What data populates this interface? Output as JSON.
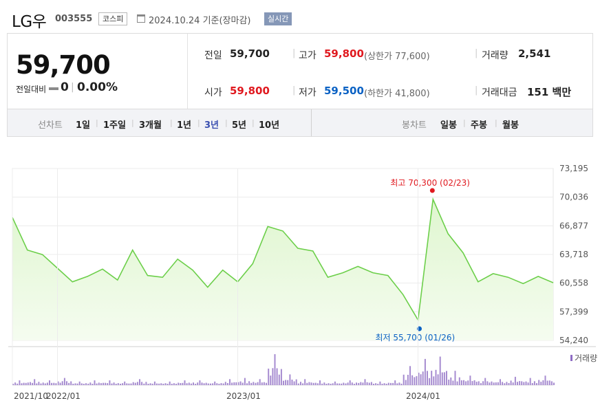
{
  "header": {
    "stock_name": "LG우",
    "stock_code": "003555",
    "market": "코스피",
    "base_date": "2024.10.24 기준(장마감)",
    "realtime_label": "실시간"
  },
  "quote": {
    "current_price": "59,700",
    "change_label": "전일대비",
    "change_value": "0",
    "change_rate": "0.00%",
    "prev_close_label": "전일",
    "prev_close": "59,700",
    "open_label": "시가",
    "open": "59,800",
    "high_label": "고가",
    "high": "59,800",
    "upper_limit": "(상한가 77,600)",
    "low_label": "저가",
    "low": "59,500",
    "lower_limit": "(하한가 41,800)",
    "volume_label": "거래량",
    "volume": "2,541",
    "amount_label": "거래대금",
    "amount": "151 백만"
  },
  "period_bar": {
    "line_chart_label": "선차트",
    "periods": [
      "1일",
      "1주일",
      "3개월",
      "1년",
      "3년",
      "5년",
      "10년"
    ],
    "active_period": "3년",
    "candle_chart_label": "봉차트",
    "candle_periods": [
      "일봉",
      "주봉",
      "월봉"
    ]
  },
  "colors": {
    "up": "#e0191f",
    "down": "#0b62c4",
    "line": "#6ccf4a",
    "fill": "#dff6cf"
  },
  "chart_data": {
    "type": "area",
    "yticks": [
      "73,195",
      "70,036",
      "66,877",
      "63,718",
      "60,558",
      "57,399",
      "54,240"
    ],
    "ylim": [
      54240,
      73195
    ],
    "xtick_labels": [
      "2021/10",
      "2022/01",
      "2023/01",
      "2024/01"
    ],
    "high_annotation": {
      "label": "최고",
      "value": "70,300",
      "date": "(02/23)"
    },
    "low_annotation": {
      "label": "최저",
      "value": "55,700",
      "date": "(01/26)"
    },
    "volume_legend": "거래량",
    "x": [
      "2021/10",
      "2021/11",
      "2021/12",
      "2022/01",
      "2022/02",
      "2022/03",
      "2022/04",
      "2022/05",
      "2022/06",
      "2022/07",
      "2022/08",
      "2022/09",
      "2022/10",
      "2022/11",
      "2022/12",
      "2023/01",
      "2023/02",
      "2023/03",
      "2023/04",
      "2023/05",
      "2023/06",
      "2023/07",
      "2023/08",
      "2023/09",
      "2023/10",
      "2023/11",
      "2023/12",
      "2024/01",
      "2024/02",
      "2024/03",
      "2024/04",
      "2024/05",
      "2024/06",
      "2024/07",
      "2024/08",
      "2024/09",
      "2024/10"
    ],
    "price": [
      67800,
      64200,
      63700,
      62200,
      60700,
      61300,
      62100,
      60900,
      64200,
      61400,
      61200,
      63200,
      62000,
      60100,
      62000,
      60700,
      62700,
      66800,
      66300,
      64400,
      64100,
      61200,
      61700,
      62400,
      61700,
      61400,
      59300,
      56500,
      69800,
      66000,
      63900,
      60700,
      61600,
      61200,
      60500,
      61300,
      60600
    ],
    "volume": [
      4,
      5,
      4,
      6,
      3,
      4,
      4,
      3,
      5,
      3,
      3,
      4,
      4,
      3,
      5,
      6,
      5,
      26,
      9,
      5,
      4,
      3,
      4,
      5,
      3,
      4,
      16,
      22,
      24,
      12,
      8,
      6,
      5,
      7,
      6,
      8,
      4
    ]
  }
}
